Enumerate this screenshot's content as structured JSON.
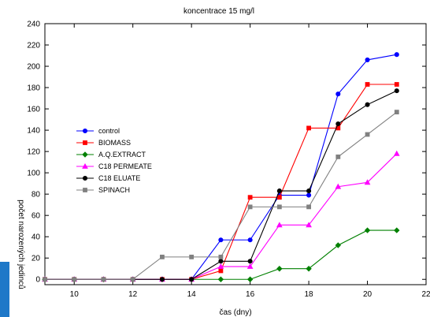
{
  "chart_data": {
    "type": "line",
    "title": "koncentrace 15 mg/l",
    "xlabel": "čas (dny)",
    "ylabel": "počet narozených jedinců",
    "xlim": [
      9,
      22
    ],
    "ylim": [
      -5,
      240
    ],
    "xticks": [
      10,
      12,
      14,
      16,
      18,
      20,
      22
    ],
    "yticks": [
      0,
      20,
      40,
      60,
      80,
      100,
      120,
      140,
      160,
      180,
      200,
      220,
      240
    ],
    "x": [
      9,
      10,
      11,
      12,
      13,
      14,
      15,
      16,
      17,
      18,
      19,
      20,
      21
    ],
    "grid": false,
    "legend_position": "middle-left",
    "series": [
      {
        "name": "control",
        "color": "#0000ff",
        "marker": "circle",
        "values": [
          0,
          0,
          0,
          0,
          0,
          0,
          37,
          37,
          79,
          79,
          174,
          206,
          211
        ]
      },
      {
        "name": "BIOMASS",
        "color": "#ff0000",
        "marker": "square",
        "values": [
          0,
          0,
          0,
          0,
          0,
          0,
          8,
          77,
          77,
          142,
          142,
          183,
          183
        ]
      },
      {
        "name": "A.Q.EXTRACT",
        "color": "#008000",
        "marker": "diamond",
        "values": [
          0,
          0,
          0,
          0,
          0,
          0,
          0,
          0,
          10,
          10,
          32,
          46,
          46
        ]
      },
      {
        "name": "C18 PERMEATE",
        "color": "#ff00ff",
        "marker": "triangle",
        "values": [
          0,
          0,
          0,
          0,
          0,
          0,
          12,
          12,
          51,
          51,
          87,
          91,
          118
        ]
      },
      {
        "name": "C18 ELUATE",
        "color": "#000000",
        "marker": "circle",
        "values": [
          0,
          0,
          0,
          0,
          0,
          0,
          17,
          17,
          83,
          83,
          146,
          164,
          177
        ]
      },
      {
        "name": "SPINACH",
        "color": "#808080",
        "marker": "square",
        "values": [
          0,
          0,
          0,
          0,
          21,
          21,
          21,
          68,
          68,
          68,
          115,
          136,
          157
        ]
      }
    ]
  }
}
